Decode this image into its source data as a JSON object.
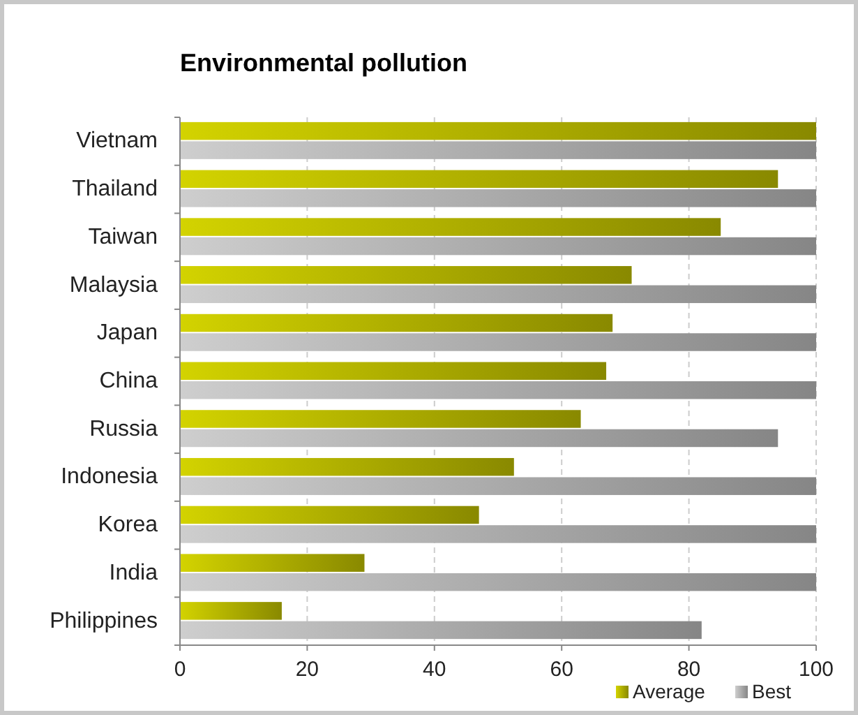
{
  "chart_data": {
    "type": "bar",
    "orientation": "horizontal",
    "title": "Environmental pollution",
    "categories": [
      "Vietnam",
      "Thailand",
      "Taiwan",
      "Malaysia",
      "Japan",
      "China",
      "Russia",
      "Indonesia",
      "Korea",
      "India",
      "Philippines"
    ],
    "series": [
      {
        "name": "Average",
        "color": "#aaaa00",
        "values": [
          100,
          94,
          85,
          71,
          68,
          67,
          63,
          52.5,
          47,
          29,
          16
        ]
      },
      {
        "name": "Best",
        "color": "#a6a6a6",
        "values": [
          100,
          100,
          100,
          100,
          100,
          100,
          94,
          100,
          100,
          100,
          82
        ]
      }
    ],
    "xlim": [
      0,
      100
    ],
    "xticks": [
      0,
      20,
      40,
      60,
      80,
      100
    ],
    "grid": "x",
    "legend": "bottom right"
  }
}
